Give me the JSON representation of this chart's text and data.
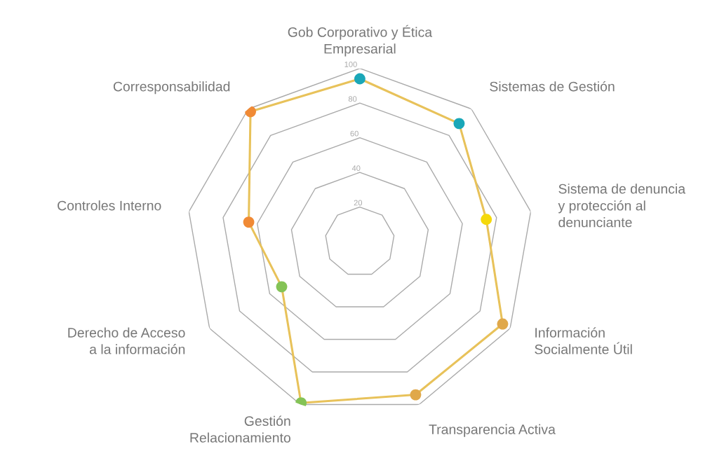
{
  "chart_data": {
    "type": "radar",
    "categories": [
      "Gob Corporativo y Ética\nEmpresarial",
      "Sistemas de Gestión",
      "Sistema de denuncia\ny protección al\ndenunciante",
      "Información\nSocialmente Útil",
      "Transparencia Activa",
      "Gestión\nRelacionamiento",
      "Derecho de Acceso\na la información",
      "Controles Interno",
      "Corresponsabilidad"
    ],
    "series": [
      {
        "color": "#e8c25a",
        "values": [
          94,
          89,
          74,
          95,
          94,
          99,
          52,
          65,
          98
        ],
        "colors": [
          "#1aa7b8",
          "#1aa7b8",
          "#f5d90a",
          "#e0a84a",
          "#e0a84a",
          "#84c356",
          "#84c356",
          "#f08a35",
          "#f08a35"
        ]
      }
    ],
    "ylim": [
      0,
      100
    ],
    "yticks": [
      20,
      40,
      60,
      80,
      100
    ],
    "grid": true,
    "marker": "circle",
    "line_style": "solid",
    "legend": false
  }
}
